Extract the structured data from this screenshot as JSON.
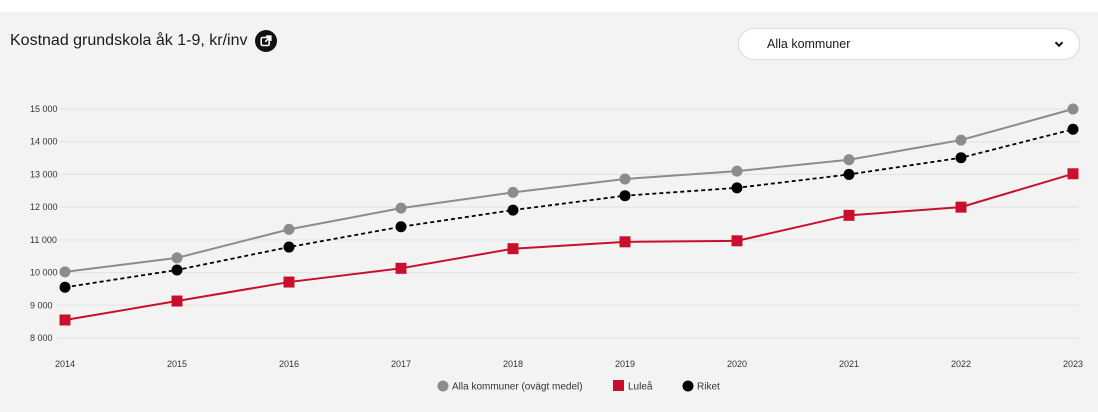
{
  "header": {
    "title": "Kostnad grundskola åk 1-9, kr/inv",
    "open_icon": "external-link-icon"
  },
  "filter": {
    "selected": "Alla kommuner",
    "icon": "chevron-down-icon"
  },
  "chart_data": {
    "type": "line",
    "title": "Kostnad grundskola åk 1-9, kr/inv",
    "xlabel": "",
    "ylabel": "",
    "x": [
      "2014",
      "2015",
      "2016",
      "2017",
      "2018",
      "2019",
      "2020",
      "2021",
      "2022",
      "2023"
    ],
    "yticks": [
      8000,
      9000,
      10000,
      11000,
      12000,
      13000,
      14000,
      15000
    ],
    "ytick_labels": [
      "8 000",
      "9 000",
      "10 000",
      "11 000",
      "12 000",
      "13 000",
      "14 000",
      "15 000"
    ],
    "ylim": [
      8000,
      15000
    ],
    "grid": true,
    "legend_position": "bottom",
    "series": [
      {
        "name": "Alla kommuner (ovägt medel)",
        "values": [
          10020,
          10450,
          11320,
          11970,
          12450,
          12860,
          13100,
          13450,
          14050,
          15000
        ],
        "color": "#8c8c8c",
        "marker": "circle",
        "line_style": "solid"
      },
      {
        "name": "Luleå",
        "values": [
          8550,
          9130,
          9710,
          10130,
          10730,
          10940,
          10970,
          11750,
          12000,
          13020
        ],
        "color": "#c8102e",
        "marker": "square",
        "line_style": "solid"
      },
      {
        "name": "Riket",
        "values": [
          9550,
          10080,
          10780,
          11400,
          11910,
          12350,
          12590,
          13000,
          13510,
          14380
        ],
        "color": "#000000",
        "marker": "circle",
        "line_style": "dashed"
      }
    ]
  }
}
